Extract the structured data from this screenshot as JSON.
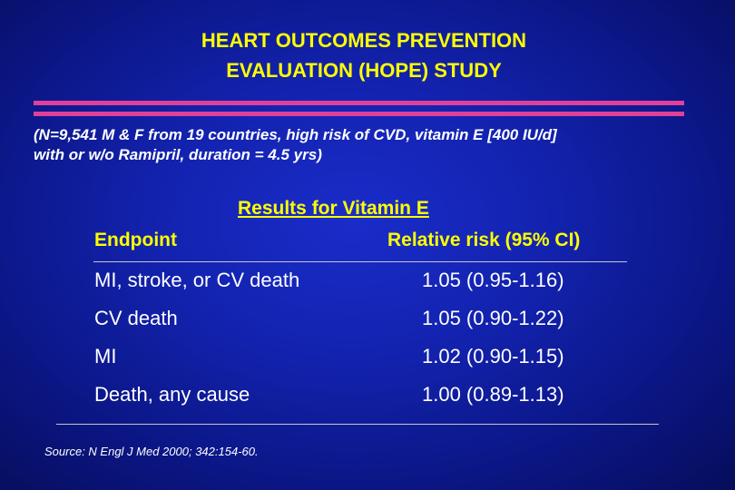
{
  "slide": {
    "title_line1": "HEART OUTCOMES PREVENTION",
    "title_line2": "EVALUATION (HOPE) STUDY",
    "description_line1": "(N=9,541 M & F from 19 countries, high risk of CVD, vitamin E [400 IU/d]",
    "description_line2": "with or w/o Ramipril, duration = 4.5 yrs)",
    "results_header": "Results for Vitamin E",
    "col_endpoint": "Endpoint",
    "col_relative_risk": "Relative risk (95% CI)",
    "rows": [
      {
        "endpoint": "MI, stroke, or CV death",
        "risk": "1.05 (0.95-1.16)"
      },
      {
        "endpoint": "CV death",
        "risk": "1.05 (0.90-1.22)"
      },
      {
        "endpoint": "MI",
        "risk": "1.02 (0.90-1.15)"
      },
      {
        "endpoint": "Death, any cause",
        "risk": "1.00 (0.89-1.13)"
      }
    ],
    "source": "Source: N Engl J Med 2000; 342:154-60."
  },
  "colors": {
    "background": "#1323b0",
    "title": "#ffff00",
    "accent_bar": "#e0409a",
    "body_text": "#ffffff"
  }
}
